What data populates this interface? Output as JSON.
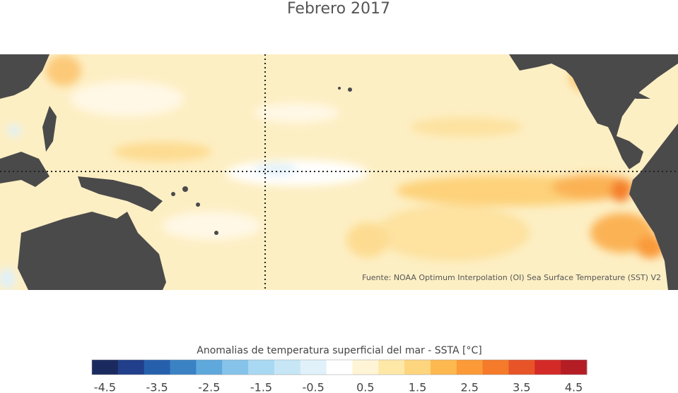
{
  "title": "Febrero 2017",
  "source": "Fuente: NOAA Optimum Interpolation (OI) Sea Surface Temperature (SST) V2",
  "colorbar": {
    "label": "Anomalias de temperatura superficial del mar - SSTA  [°C]",
    "ticks": [
      -4.5,
      -3.5,
      -2.5,
      -1.5,
      -0.5,
      0.5,
      1.5,
      2.5,
      3.5,
      4.5
    ],
    "colors": [
      "#1b2a5e",
      "#213f8a",
      "#2660ad",
      "#3a82c4",
      "#5fa8dc",
      "#86c3ea",
      "#a9d8f2",
      "#c6e6f6",
      "#e0f1fa",
      "#ffffff",
      "#fff5d6",
      "#fee8a8",
      "#fdd57e",
      "#fdb84f",
      "#fb9a37",
      "#f57a2a",
      "#e75428",
      "#d42a27",
      "#b51d24"
    ]
  }
}
